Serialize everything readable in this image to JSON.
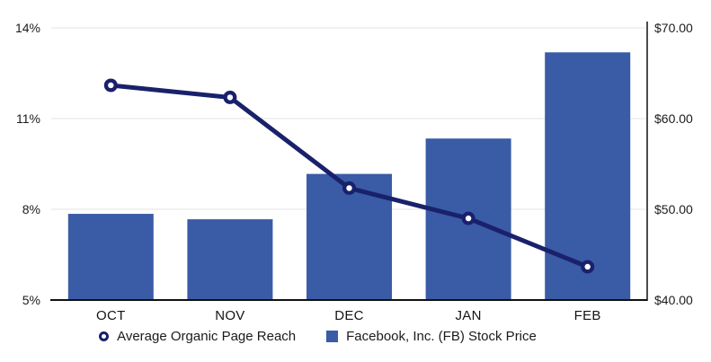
{
  "chart_data": {
    "type": "combo",
    "title": "",
    "categories": [
      "OCT",
      "NOV",
      "DEC",
      "JAN",
      "FEB"
    ],
    "series": [
      {
        "name": "Average Organic Page Reach",
        "type": "line",
        "axis": "left",
        "unit": "%",
        "values": [
          12.1,
          11.7,
          8.7,
          7.7,
          6.1
        ],
        "color": "#19216B"
      },
      {
        "name": "Facebook, Inc. (FB) Stock Price",
        "type": "bar",
        "axis": "right",
        "unit": "$",
        "values": [
          49.5,
          48.9,
          53.9,
          57.8,
          67.3
        ],
        "color": "#3A5BA6"
      }
    ],
    "left_axis": {
      "min": 5,
      "max": 14,
      "tick_labels": [
        "14%",
        "11%",
        "8%",
        "5%"
      ],
      "tick_values": [
        14,
        11,
        8,
        5
      ]
    },
    "right_axis": {
      "min": 40,
      "max": 70,
      "tick_labels": [
        "$70.00",
        "$60.00",
        "$50.00",
        "$40.00"
      ],
      "tick_values": [
        70,
        60,
        50,
        40
      ]
    },
    "grid": true,
    "legend_position": "bottom"
  },
  "legend": {
    "items": [
      {
        "label": "Average Organic Page Reach",
        "marker": "ring-icon"
      },
      {
        "label": "Facebook, Inc. (FB) Stock Price",
        "marker": "square-icon"
      }
    ]
  },
  "colors": {
    "bar": "#3A5BA6",
    "line": "#19216B",
    "gridline": "#e3e3e6",
    "axis": "#101010",
    "text": "#1b1b1b",
    "background": "#ffffff"
  }
}
